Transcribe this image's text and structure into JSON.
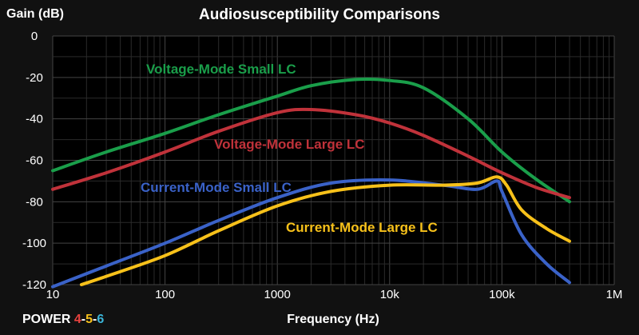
{
  "chart_data": {
    "type": "line",
    "title": "Audiosusceptibility Comparisons",
    "ylabel": "Gain (dB)",
    "xlabel": "Frequency (Hz)",
    "xscale": "log",
    "xlim": [
      10,
      1000000
    ],
    "ylim": [
      -120,
      0
    ],
    "grid": true,
    "x_tick_labels": [
      "10",
      "100",
      "1000",
      "10k",
      "100k",
      "1M"
    ],
    "y_tick_labels": [
      "0",
      "-20",
      "-40",
      "-60",
      "-80",
      "-100",
      "-120"
    ],
    "series": [
      {
        "name": "Voltage-Mode Small LC",
        "color": "#1a9e4a",
        "x": [
          10,
          30,
          100,
          300,
          1000,
          2000,
          5000,
          10000,
          20000,
          50000,
          100000,
          200000,
          400000
        ],
        "y": [
          -65,
          -56,
          -47,
          -38,
          -29,
          -24,
          -21,
          -21.5,
          -25,
          -40,
          -56,
          -69,
          -80
        ]
      },
      {
        "name": "Voltage-Mode Large LC",
        "color": "#c0323a",
        "x": [
          10,
          30,
          100,
          300,
          1000,
          2000,
          5000,
          10000,
          20000,
          50000,
          100000,
          200000,
          400000
        ],
        "y": [
          -74,
          -66,
          -56,
          -46,
          -37,
          -35.5,
          -38,
          -42,
          -48,
          -58,
          -66,
          -73,
          -78
        ]
      },
      {
        "name": "Current-Mode Small LC",
        "color": "#3a62c8",
        "x": [
          10,
          30,
          100,
          300,
          1000,
          3000,
          10000,
          30000,
          60000,
          90000,
          100000,
          150000,
          250000,
          400000
        ],
        "y": [
          -121,
          -111,
          -100,
          -89,
          -78,
          -71,
          -69.5,
          -72,
          -74,
          -70,
          -75,
          -96,
          -110,
          -119
        ]
      },
      {
        "name": "Current-Mode Large LC",
        "color": "#f7c11a",
        "x": [
          18,
          30,
          100,
          300,
          1000,
          3000,
          10000,
          30000,
          60000,
          90000,
          110000,
          150000,
          250000,
          400000
        ],
        "y": [
          -120,
          -116,
          -106,
          -94,
          -82,
          -75,
          -72,
          -72,
          -71,
          -68,
          -72,
          -84,
          -93,
          -99
        ]
      }
    ],
    "annotations": [
      {
        "text": "Voltage-Mode Small LC",
        "series": 0
      },
      {
        "text": "Voltage-Mode Large LC",
        "series": 1
      },
      {
        "text": "Current-Mode Small LC",
        "series": 2
      },
      {
        "text": "Current-Mode Large LC",
        "series": 3
      }
    ]
  },
  "brand": {
    "prefix": "POWER ",
    "n1": "4",
    "sep1": "-",
    "n2": "5",
    "sep2": "-",
    "n3": "6",
    "c_n1": "#e8423f",
    "c_n2": "#f7c11a",
    "c_n3": "#3bb5d8"
  }
}
